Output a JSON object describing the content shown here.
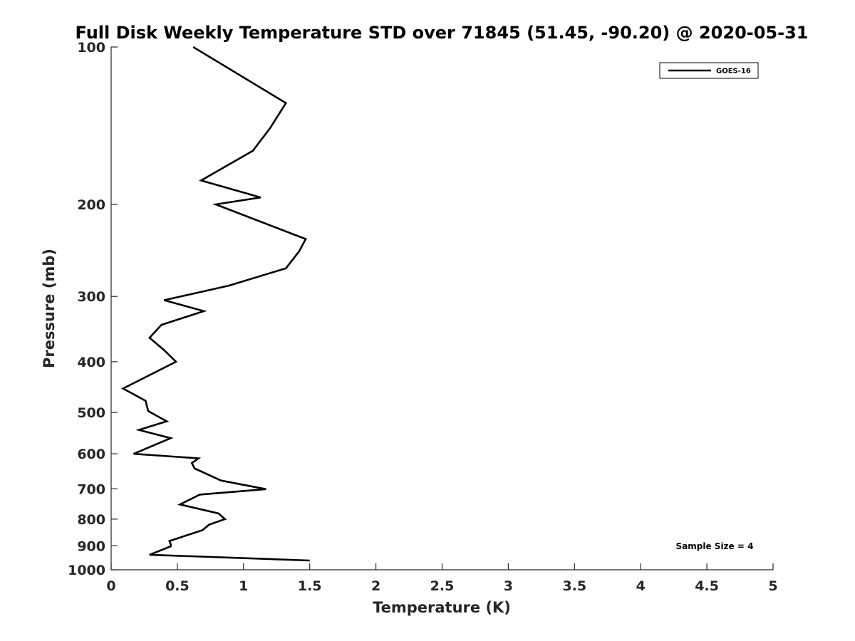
{
  "chart_data": {
    "type": "line",
    "title": "Full Disk Weekly Temperature STD over 71845 (51.45, -90.20) @ 2020-05-31",
    "xlabel": "Temperature (K)",
    "ylabel": "Pressure (mb)",
    "xlim": [
      0,
      5
    ],
    "ylim": [
      100,
      1000
    ],
    "y_scale": "log",
    "y_reversed": true,
    "grid": false,
    "legend_position": "top-right",
    "x_ticks": [
      0,
      0.5,
      1,
      1.5,
      2,
      2.5,
      3,
      3.5,
      4,
      4.5,
      5
    ],
    "x_tick_labels": [
      "0",
      "0.5",
      "1",
      "1.5",
      "2",
      "2.5",
      "3",
      "3.5",
      "4",
      "4.5",
      "5"
    ],
    "y_ticks": [
      100,
      200,
      300,
      400,
      500,
      600,
      700,
      800,
      900,
      1000
    ],
    "y_tick_labels": [
      "100",
      "200",
      "300",
      "400",
      "500",
      "600",
      "700",
      "800",
      "900",
      "1000"
    ],
    "series": [
      {
        "name": "GOES-16",
        "color": "#000000",
        "x": [
          0.62,
          1.32,
          1.2,
          1.07,
          0.68,
          1.13,
          0.79,
          1.47,
          1.42,
          1.32,
          0.89,
          0.4,
          0.7,
          0.38,
          0.29,
          0.4,
          0.49,
          0.09,
          0.26,
          0.28,
          0.42,
          0.21,
          0.45,
          0.17,
          0.66,
          0.61,
          0.63,
          0.83,
          1.17,
          0.67,
          0.52,
          0.81,
          0.86,
          0.74,
          0.69,
          0.44,
          0.45,
          0.45,
          0.29,
          1.5
        ],
        "y": [
          100,
          128,
          143,
          158,
          180,
          194,
          200,
          233,
          246,
          265,
          286,
          305,
          320,
          340,
          360,
          380,
          400,
          450,
          475,
          497,
          520,
          540,
          560,
          600,
          612,
          625,
          640,
          675,
          701,
          718,
          750,
          780,
          800,
          820,
          840,
          881,
          894,
          902,
          936,
          960
        ]
      }
    ],
    "annotations": [
      "Sample Size = 4"
    ]
  }
}
